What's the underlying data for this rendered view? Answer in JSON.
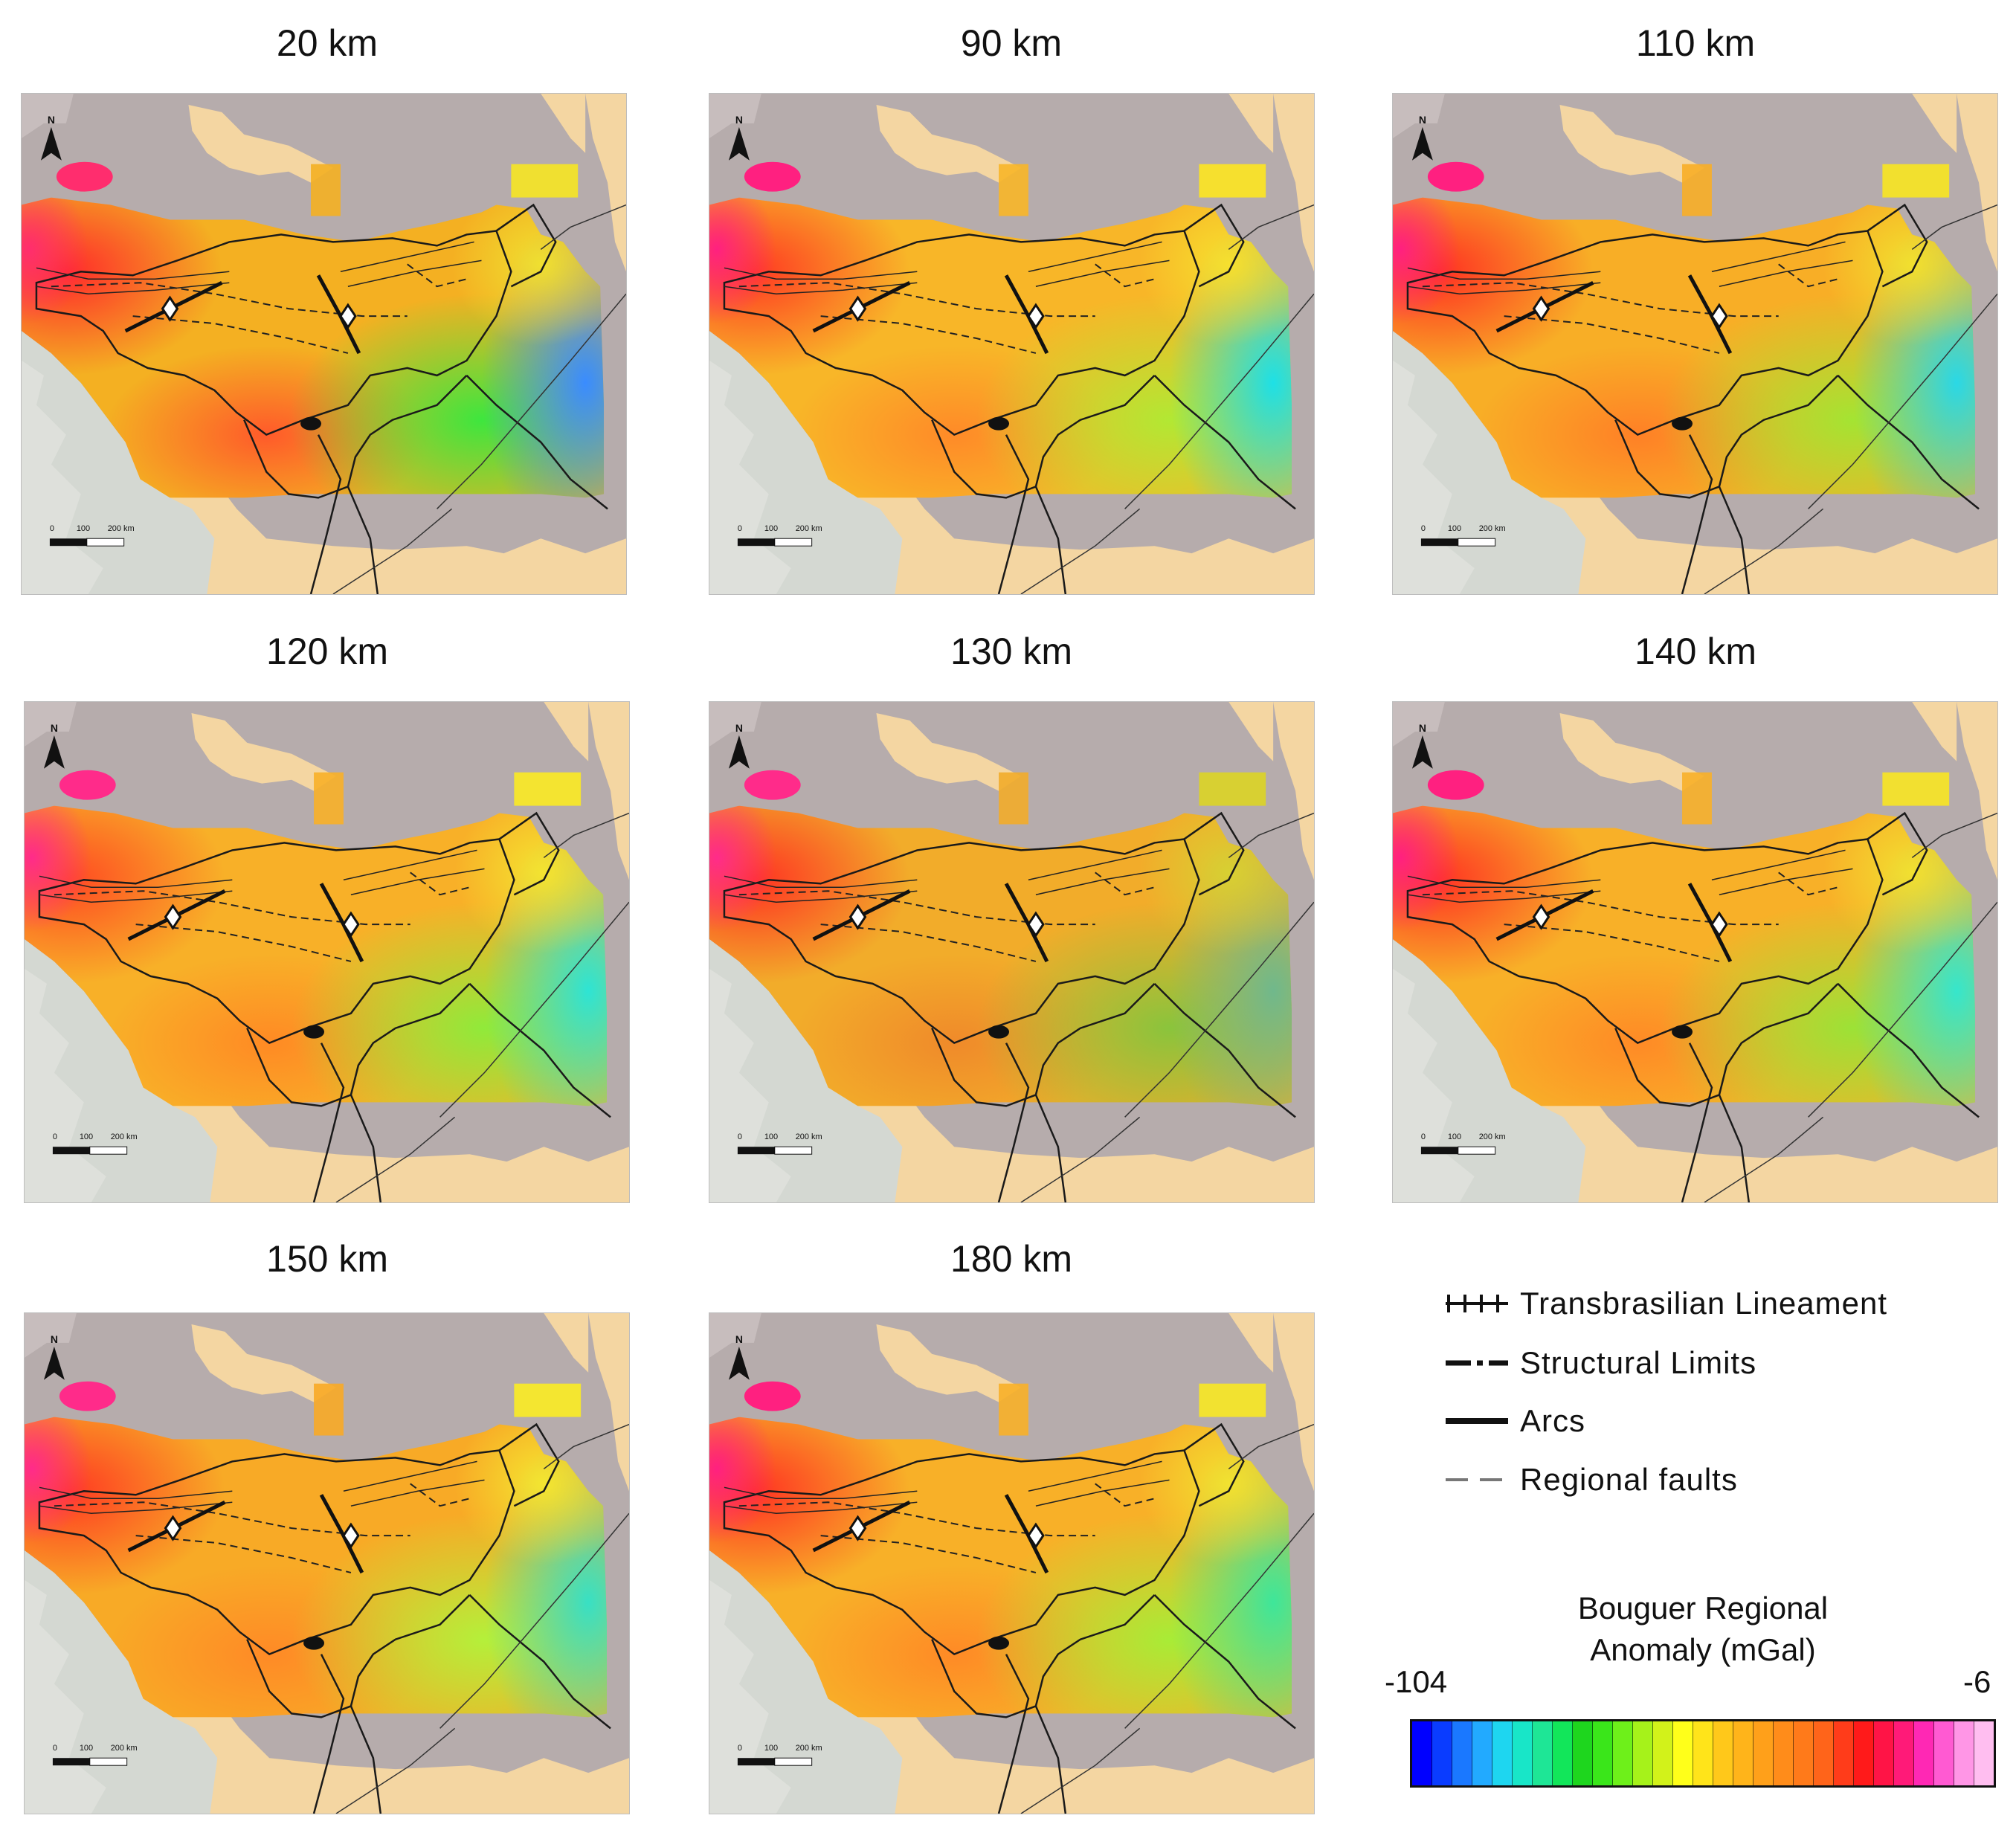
{
  "maps": [
    {
      "title": "20 km",
      "colors": {
        "w": "#ff2d6e",
        "nw": "#ff2a2a",
        "c": "#f4b022",
        "sw": "#ff5a2a",
        "sc": "#3ee63e",
        "e": "#3a8cff",
        "ne": "#f0e030"
      }
    },
    {
      "title": "90 km",
      "colors": {
        "w": "#ff2080",
        "nw": "#ff3a22",
        "c": "#f8b628",
        "sw": "#ff8a28",
        "sc": "#b2e833",
        "e": "#1ee0e6",
        "ne": "#f6e02e"
      }
    },
    {
      "title": "110 km",
      "colors": {
        "w": "#ff2080",
        "nw": "#ff3022",
        "c": "#f8ae26",
        "sw": "#ff8026",
        "sc": "#a4e432",
        "e": "#2ad8e6",
        "ne": "#f2e02e"
      }
    },
    {
      "title": "120 km",
      "colors": {
        "w": "#ff2b8a",
        "nw": "#ff4a22",
        "c": "#f8b028",
        "sw": "#ff8a24",
        "sc": "#90ea3a",
        "e": "#2ee4d4",
        "ne": "#f4e430"
      }
    },
    {
      "title": "130 km",
      "colors": {
        "w": "#ff2b8a",
        "nw": "#ff3322",
        "c": "#f2ac2a",
        "sw": "#f08a2a",
        "sc": "#8ac43c",
        "e": "#70b88c",
        "ne": "#d8d032"
      }
    },
    {
      "title": "140 km",
      "colors": {
        "w": "#ff2080",
        "nw": "#ff3322",
        "c": "#f8b028",
        "sw": "#ff8a26",
        "sc": "#9ce236",
        "e": "#36e6cc",
        "ne": "#f2e030"
      }
    },
    {
      "title": "150 km",
      "colors": {
        "w": "#ff2b8a",
        "nw": "#ff3a22",
        "c": "#f8aa26",
        "sw": "#ff8a26",
        "sc": "#b4f03a",
        "e": "#38e0c4",
        "ne": "#f4e630"
      }
    },
    {
      "title": "180 km",
      "colors": {
        "w": "#ff2080",
        "nw": "#ff3322",
        "c": "#f8b028",
        "sw": "#ff8a26",
        "sc": "#a8ec36",
        "e": "#3ee69a",
        "ne": "#f2e230"
      }
    }
  ],
  "map_common": {
    "north_label": "N",
    "scale_labels": [
      "0",
      "100",
      "200 km"
    ]
  },
  "legend": {
    "items": [
      {
        "label": "Transbrasilian  Lineament",
        "icon": "transbrasilian-lineament-symbol"
      },
      {
        "label": "Structural Limits",
        "icon": "structural-limits-symbol"
      },
      {
        "label": "Arcs",
        "icon": "arcs-symbol"
      },
      {
        "label": "Regional faults",
        "icon": "regional-faults-symbol"
      }
    ]
  },
  "colorbar": {
    "title_line1": "Bouguer Regional",
    "title_line2": "Anomaly (mGal)",
    "min_label": "-104",
    "max_label": "-6",
    "colors": [
      "#0000ff",
      "#0a3cff",
      "#1a78ff",
      "#22aaff",
      "#1ed6f0",
      "#18e6c8",
      "#1ee696",
      "#12e65a",
      "#1ed61e",
      "#3ae61a",
      "#6ef01a",
      "#a6f21a",
      "#d2f21a",
      "#ffff1a",
      "#ffe41a",
      "#ffc81a",
      "#ffb41a",
      "#ffa01a",
      "#ff8c1a",
      "#ff7a1a",
      "#ff641a",
      "#ff3c1a",
      "#ff1a1a",
      "#ff1446",
      "#ff1a78",
      "#ff28b4",
      "#ff5ad2",
      "#ff96e6",
      "#ffbef0"
    ]
  }
}
